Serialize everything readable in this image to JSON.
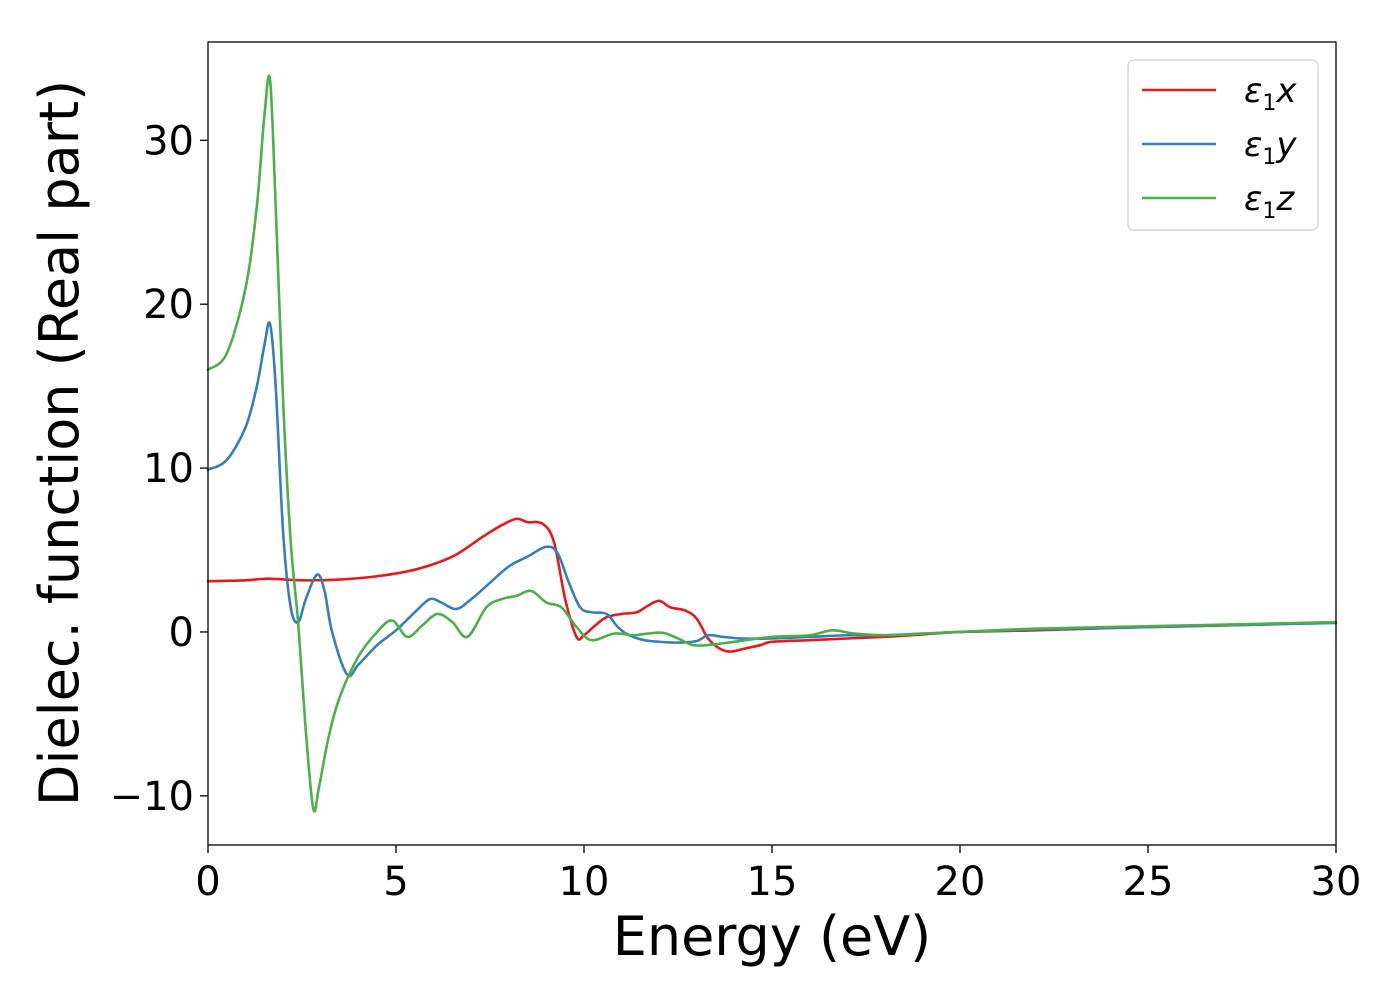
{
  "chart_data": {
    "type": "line",
    "title": "",
    "xlabel": "Energy (eV)",
    "ylabel": "Dielec. function (Real part)",
    "xlim": [
      0,
      30
    ],
    "ylim": [
      -13,
      36
    ],
    "x_ticks": [
      0,
      5,
      10,
      15,
      20,
      25,
      30
    ],
    "x_tick_labels": [
      "0",
      "5",
      "10",
      "15",
      "20",
      "25",
      "30"
    ],
    "y_ticks": [
      -10,
      0,
      10,
      20,
      30
    ],
    "y_tick_labels": [
      "−10",
      "0",
      "10",
      "20",
      "30"
    ],
    "grid": false,
    "legend_position": "top-right",
    "series": [
      {
        "name": "ε1x",
        "legend_base": "ε",
        "legend_sub": "1",
        "legend_tail": "x",
        "color": "#e41a1c",
        "x": [
          0,
          1,
          1.6,
          2.5,
          3.5,
          4.5,
          5.5,
          6.5,
          7.3,
          7.8,
          8.2,
          8.5,
          8.9,
          9.2,
          9.5,
          9.8,
          10.0,
          10.3,
          10.6,
          11.0,
          11.4,
          11.7,
          12.0,
          12.3,
          12.7,
          13.0,
          13.3,
          13.6,
          13.9,
          14.3,
          14.7,
          15.0,
          16.0,
          17.0,
          18.0,
          19.0,
          20.0,
          22.0,
          25.0,
          28.0,
          30.0
        ],
        "y": [
          3.1,
          3.15,
          3.25,
          3.15,
          3.2,
          3.4,
          3.8,
          4.6,
          5.8,
          6.5,
          6.9,
          6.7,
          6.6,
          5.5,
          2.0,
          -0.3,
          -0.2,
          0.4,
          0.9,
          1.1,
          1.2,
          1.6,
          1.9,
          1.5,
          1.3,
          0.8,
          -0.4,
          -1.0,
          -1.2,
          -1.0,
          -0.8,
          -0.6,
          -0.5,
          -0.4,
          -0.3,
          -0.15,
          0.0,
          0.1,
          0.3,
          0.45,
          0.6
        ]
      },
      {
        "name": "ε1y",
        "legend_base": "ε",
        "legend_sub": "1",
        "legend_tail": "y",
        "color": "#377eb8",
        "x": [
          0,
          0.5,
          1.0,
          1.3,
          1.5,
          1.65,
          1.8,
          2.0,
          2.2,
          2.4,
          2.6,
          2.9,
          3.1,
          3.3,
          3.7,
          4.0,
          4.5,
          5.0,
          5.5,
          5.9,
          6.2,
          6.6,
          7.0,
          7.5,
          8.0,
          8.5,
          9.0,
          9.3,
          9.6,
          9.9,
          10.2,
          10.6,
          10.9,
          11.2,
          11.6,
          12.0,
          12.5,
          13.0,
          13.3,
          13.7,
          14.2,
          15.0,
          16.0,
          17.0,
          18.0,
          20.0,
          22.0,
          25.0,
          28.0,
          30.0
        ],
        "y": [
          9.9,
          10.5,
          12.5,
          15.0,
          17.5,
          18.8,
          15.0,
          6.0,
          1.5,
          0.6,
          2.0,
          3.5,
          2.5,
          0.0,
          -2.6,
          -2.0,
          -0.8,
          0.1,
          1.2,
          2.0,
          1.8,
          1.4,
          2.0,
          3.0,
          4.0,
          4.6,
          5.2,
          4.8,
          3.0,
          1.5,
          1.2,
          1.1,
          0.3,
          -0.2,
          -0.5,
          -0.6,
          -0.65,
          -0.55,
          -0.2,
          -0.3,
          -0.4,
          -0.4,
          -0.3,
          -0.2,
          -0.2,
          0.0,
          0.15,
          0.3,
          0.45,
          0.55
        ]
      },
      {
        "name": "ε1z",
        "legend_base": "ε",
        "legend_sub": "1",
        "legend_tail": "z",
        "color": "#4daf4a",
        "x": [
          0,
          0.5,
          1.0,
          1.3,
          1.5,
          1.65,
          1.8,
          2.0,
          2.2,
          2.4,
          2.6,
          2.8,
          2.95,
          3.2,
          3.5,
          4.0,
          4.5,
          4.9,
          5.3,
          5.7,
          6.1,
          6.5,
          6.9,
          7.4,
          7.8,
          8.2,
          8.6,
          9.0,
          9.4,
          9.8,
          10.2,
          10.8,
          11.3,
          11.7,
          12.1,
          12.5,
          12.9,
          13.3,
          14.0,
          15.0,
          16.0,
          16.6,
          17.2,
          18.0,
          19.0,
          20.0,
          22.0,
          25.0,
          28.0,
          30.0
        ],
        "y": [
          16.0,
          17.0,
          21.0,
          26.0,
          31.5,
          33.7,
          26.0,
          14.0,
          5.5,
          0.5,
          -6.0,
          -10.8,
          -9.5,
          -6.5,
          -4.0,
          -1.5,
          0.0,
          0.7,
          -0.3,
          0.4,
          1.1,
          0.6,
          -0.3,
          1.5,
          2.0,
          2.2,
          2.5,
          1.8,
          1.5,
          0.3,
          -0.5,
          -0.1,
          -0.2,
          -0.1,
          -0.05,
          -0.4,
          -0.8,
          -0.8,
          -0.6,
          -0.3,
          -0.2,
          0.1,
          -0.1,
          -0.2,
          -0.1,
          0.0,
          0.2,
          0.35,
          0.5,
          0.6
        ]
      }
    ]
  }
}
